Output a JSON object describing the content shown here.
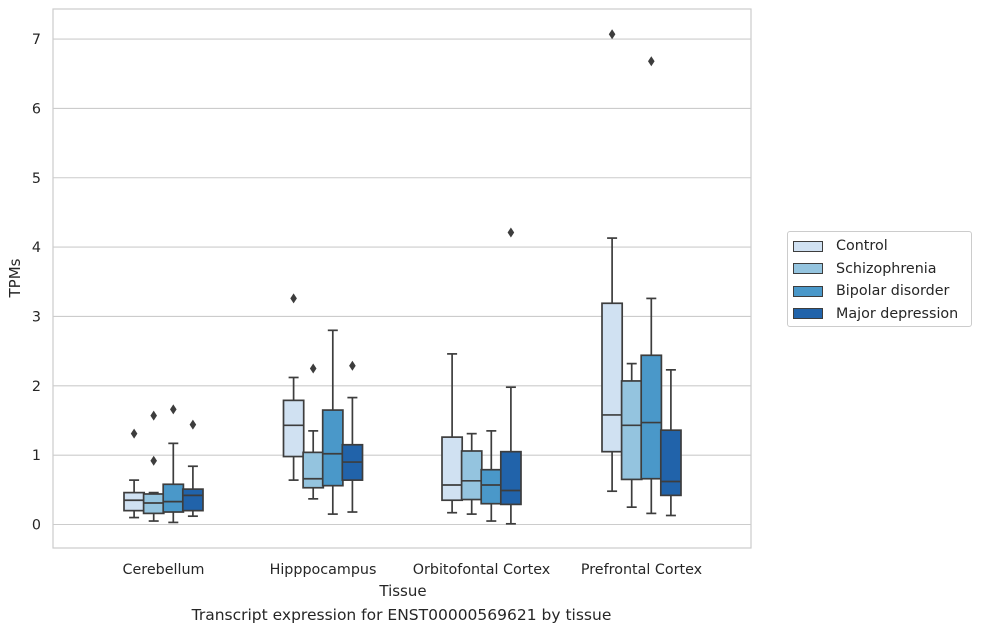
{
  "chart_data": {
    "type": "box",
    "title": "Transcript expression for ENST00000569621 by tissue",
    "xlabel": "Tissue",
    "ylabel": "TPMs",
    "ylim": [
      -0.35,
      7.45
    ],
    "yticks": [
      0,
      1,
      2,
      3,
      4,
      5,
      6,
      7
    ],
    "grid": true,
    "legend_position": "right",
    "categories": [
      "Cerebellum",
      "Hipppocampus",
      "Orbitofontal Cortex",
      "Prefrontal Cortex"
    ],
    "series": [
      {
        "name": "Control",
        "color": "#d0e1f2",
        "boxes": [
          {
            "whisker_low": 0.1,
            "q1": 0.2,
            "median": 0.35,
            "q3": 0.46,
            "whisker_high": 0.64,
            "outliers": [
              1.31
            ]
          },
          {
            "whisker_low": 0.64,
            "q1": 0.98,
            "median": 1.43,
            "q3": 1.79,
            "whisker_high": 2.12,
            "outliers": [
              3.26
            ]
          },
          {
            "whisker_low": 0.17,
            "q1": 0.35,
            "median": 0.57,
            "q3": 1.26,
            "whisker_high": 2.46,
            "outliers": []
          },
          {
            "whisker_low": 0.48,
            "q1": 1.05,
            "median": 1.58,
            "q3": 3.19,
            "whisker_high": 4.13,
            "outliers": [
              7.07
            ]
          }
        ]
      },
      {
        "name": "Schizophrenia",
        "color": "#94c4df",
        "boxes": [
          {
            "whisker_low": 0.05,
            "q1": 0.16,
            "median": 0.31,
            "q3": 0.44,
            "whisker_high": 0.46,
            "outliers": [
              0.92,
              1.57
            ]
          },
          {
            "whisker_low": 0.37,
            "q1": 0.53,
            "median": 0.66,
            "q3": 1.04,
            "whisker_high": 1.35,
            "outliers": [
              2.25
            ]
          },
          {
            "whisker_low": 0.15,
            "q1": 0.36,
            "median": 0.63,
            "q3": 1.06,
            "whisker_high": 1.31,
            "outliers": []
          },
          {
            "whisker_low": 0.25,
            "q1": 0.65,
            "median": 1.43,
            "q3": 2.07,
            "whisker_high": 2.32,
            "outliers": []
          }
        ]
      },
      {
        "name": "Bipolar disorder",
        "color": "#4a98c9",
        "boxes": [
          {
            "whisker_low": 0.03,
            "q1": 0.18,
            "median": 0.33,
            "q3": 0.58,
            "whisker_high": 1.17,
            "outliers": [
              1.66
            ]
          },
          {
            "whisker_low": 0.15,
            "q1": 0.56,
            "median": 1.02,
            "q3": 1.65,
            "whisker_high": 2.8,
            "outliers": []
          },
          {
            "whisker_low": 0.05,
            "q1": 0.3,
            "median": 0.57,
            "q3": 0.79,
            "whisker_high": 1.35,
            "outliers": []
          },
          {
            "whisker_low": 0.16,
            "q1": 0.66,
            "median": 1.47,
            "q3": 2.44,
            "whisker_high": 3.26,
            "outliers": [
              6.68
            ]
          }
        ]
      },
      {
        "name": "Major depression",
        "color": "#2163aa",
        "boxes": [
          {
            "whisker_low": 0.12,
            "q1": 0.2,
            "median": 0.42,
            "q3": 0.51,
            "whisker_high": 0.84,
            "outliers": [
              1.44
            ]
          },
          {
            "whisker_low": 0.18,
            "q1": 0.64,
            "median": 0.9,
            "q3": 1.15,
            "whisker_high": 1.83,
            "outliers": [
              2.29
            ]
          },
          {
            "whisker_low": 0.01,
            "q1": 0.29,
            "median": 0.49,
            "q3": 1.05,
            "whisker_high": 1.98,
            "outliers": [
              4.21
            ]
          },
          {
            "whisker_low": 0.13,
            "q1": 0.42,
            "median": 0.62,
            "q3": 1.36,
            "whisker_high": 2.23,
            "outliers": []
          }
        ]
      }
    ]
  }
}
